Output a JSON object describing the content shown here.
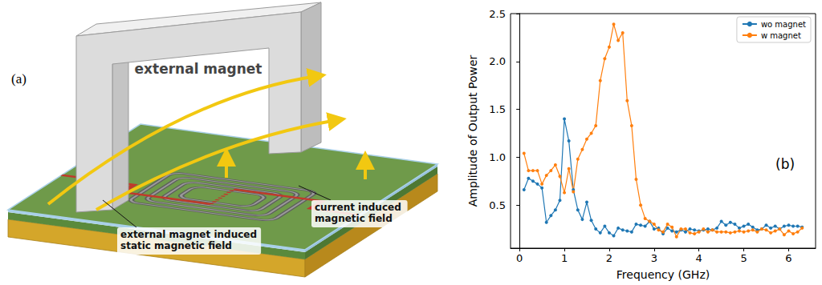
{
  "diagram": {
    "panel_label": "(a)",
    "labels": {
      "magnet": "external magnet",
      "static_field": "external magnet induced static magnetic field",
      "current_field": "current induced magnetic field"
    }
  },
  "chart_data": {
    "type": "line",
    "panel_label": "(b)",
    "x_label": "Frequency (GHz)",
    "y_label": "Amplitude of Output Power",
    "x": [
      0.1,
      0.2,
      0.3,
      0.4,
      0.5,
      0.6,
      0.7,
      0.8,
      0.9,
      1.0,
      1.1,
      1.2,
      1.3,
      1.4,
      1.5,
      1.6,
      1.7,
      1.8,
      1.9,
      2.0,
      2.1,
      2.2,
      2.3,
      2.4,
      2.5,
      2.6,
      2.7,
      2.8,
      2.9,
      3.0,
      3.1,
      3.2,
      3.3,
      3.4,
      3.5,
      3.6,
      3.7,
      3.8,
      3.9,
      4.0,
      4.1,
      4.2,
      4.3,
      4.4,
      4.5,
      4.6,
      4.7,
      4.8,
      4.9,
      5.0,
      5.1,
      5.2,
      5.3,
      5.4,
      5.5,
      5.6,
      5.7,
      5.8,
      5.9,
      6.0,
      6.1,
      6.2,
      6.3
    ],
    "series": [
      {
        "name": "wo magnet",
        "color": "#1f77b4",
        "marker": "circle",
        "values": [
          0.66,
          0.78,
          0.75,
          0.72,
          0.68,
          0.32,
          0.39,
          0.45,
          0.55,
          1.4,
          1.17,
          0.66,
          0.45,
          0.35,
          0.53,
          0.34,
          0.25,
          0.21,
          0.28,
          0.21,
          0.18,
          0.26,
          0.24,
          0.23,
          0.22,
          0.3,
          0.29,
          0.28,
          0.33,
          0.25,
          0.26,
          0.2,
          0.26,
          0.23,
          0.22,
          0.24,
          0.22,
          0.25,
          0.24,
          0.23,
          0.24,
          0.25,
          0.24,
          0.26,
          0.33,
          0.29,
          0.32,
          0.3,
          0.26,
          0.28,
          0.3,
          0.27,
          0.24,
          0.25,
          0.29,
          0.26,
          0.28,
          0.25,
          0.28,
          0.29,
          0.28,
          0.28,
          0.27
        ]
      },
      {
        "name": "w magnet",
        "color": "#ff7f0e",
        "marker": "circle",
        "values": [
          1.04,
          0.86,
          0.86,
          0.86,
          0.72,
          0.81,
          0.86,
          0.92,
          0.8,
          0.63,
          0.88,
          0.64,
          0.98,
          1.08,
          1.19,
          1.25,
          1.33,
          1.8,
          2.03,
          2.15,
          2.39,
          2.22,
          2.3,
          1.59,
          1.33,
          0.77,
          0.5,
          0.36,
          0.33,
          0.3,
          0.24,
          0.22,
          0.3,
          0.27,
          0.17,
          0.25,
          0.25,
          0.21,
          0.2,
          0.22,
          0.25,
          0.22,
          0.24,
          0.22,
          0.22,
          0.22,
          0.21,
          0.22,
          0.23,
          0.22,
          0.23,
          0.24,
          0.22,
          0.25,
          0.24,
          0.21,
          0.23,
          0.25,
          0.19,
          0.23,
          0.2,
          0.22,
          0.26
        ]
      }
    ],
    "xlim": [
      -0.2,
      6.6
    ],
    "xticks": [
      0,
      1,
      2,
      3,
      4,
      5,
      6
    ],
    "ylim": [
      0.05,
      2.5
    ],
    "yticks": [
      0.5,
      {
        "value": 1,
        "label": "1.0"
      },
      1.5,
      {
        "value": 2,
        "label": "2.0"
      },
      2.5
    ],
    "grid": false,
    "legend": "upper right"
  }
}
